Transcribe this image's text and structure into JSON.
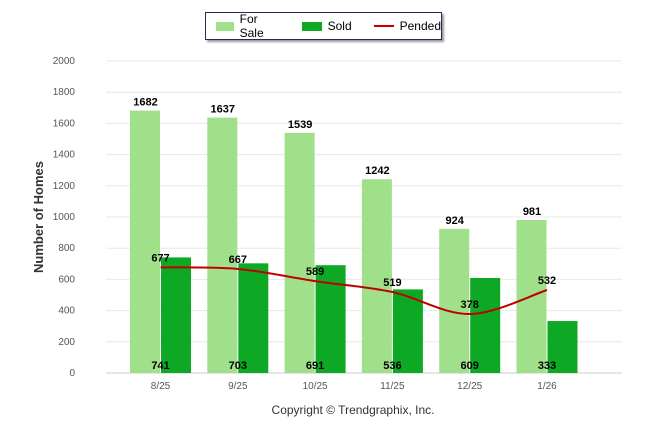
{
  "chart_data": {
    "type": "bar",
    "categories": [
      "8/25",
      "9/25",
      "10/25",
      "11/25",
      "12/25",
      "1/26"
    ],
    "series": [
      {
        "name": "For Sale",
        "type": "bar",
        "color": "#a0e08a",
        "values": [
          1682,
          1637,
          1539,
          1242,
          924,
          981
        ]
      },
      {
        "name": "Sold",
        "type": "bar",
        "color": "#0da925",
        "values": [
          741,
          703,
          691,
          536,
          609,
          333
        ]
      },
      {
        "name": "Pended",
        "type": "line",
        "color": "#c00000",
        "values": [
          677,
          667,
          589,
          519,
          378,
          532
        ]
      }
    ],
    "ylabel": "Number of Homes",
    "xlabel": "",
    "ylim": [
      0,
      2000
    ],
    "yticks": [
      0,
      200,
      400,
      600,
      800,
      1000,
      1200,
      1400,
      1600,
      1800,
      2000
    ],
    "grid": true,
    "legend_position": "top-center"
  },
  "copyright": "Copyright © Trendgraphix, Inc."
}
